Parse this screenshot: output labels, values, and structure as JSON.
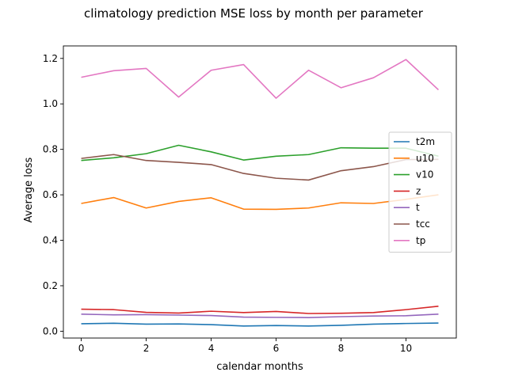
{
  "chart_data": {
    "type": "line",
    "title": "climatology prediction MSE loss by month per parameter",
    "xlabel": "calendar months",
    "ylabel": "Average loss",
    "xlim": [
      -0.55,
      11.55
    ],
    "ylim": [
      -0.03,
      1.255
    ],
    "xticks": [
      0,
      2,
      4,
      6,
      8,
      10
    ],
    "yticks": [
      0.0,
      0.2,
      0.4,
      0.6,
      0.8,
      1.0,
      1.2
    ],
    "grid": false,
    "legend_position": "center-right",
    "x": [
      0,
      1,
      2,
      3,
      4,
      5,
      6,
      7,
      8,
      9,
      10,
      11
    ],
    "series": [
      {
        "name": "t2m",
        "color": "#1f77b4",
        "values": [
          0.033,
          0.035,
          0.031,
          0.032,
          0.029,
          0.023,
          0.025,
          0.023,
          0.026,
          0.031,
          0.034,
          0.036
        ]
      },
      {
        "name": "u10",
        "color": "#ff7f0e",
        "values": [
          0.562,
          0.588,
          0.542,
          0.571,
          0.587,
          0.537,
          0.536,
          0.542,
          0.565,
          0.562,
          0.58,
          0.6
        ]
      },
      {
        "name": "v10",
        "color": "#2ca02c",
        "values": [
          0.751,
          0.763,
          0.781,
          0.818,
          0.789,
          0.753,
          0.77,
          0.777,
          0.807,
          0.805,
          0.805,
          0.77
        ]
      },
      {
        "name": "z",
        "color": "#d62728",
        "values": [
          0.097,
          0.095,
          0.083,
          0.08,
          0.088,
          0.082,
          0.087,
          0.078,
          0.079,
          0.082,
          0.095,
          0.11
        ]
      },
      {
        "name": "t",
        "color": "#9467bd",
        "values": [
          0.075,
          0.072,
          0.073,
          0.071,
          0.069,
          0.062,
          0.061,
          0.06,
          0.064,
          0.067,
          0.068,
          0.075
        ]
      },
      {
        "name": "tcc",
        "color": "#8c564b",
        "values": [
          0.76,
          0.777,
          0.751,
          0.743,
          0.733,
          0.694,
          0.673,
          0.665,
          0.706,
          0.724,
          0.755,
          0.756
        ]
      },
      {
        "name": "tp",
        "color": "#e377c2",
        "values": [
          1.117,
          1.146,
          1.156,
          1.03,
          1.148,
          1.173,
          1.025,
          1.148,
          1.071,
          1.115,
          1.195,
          1.062
        ]
      }
    ]
  }
}
